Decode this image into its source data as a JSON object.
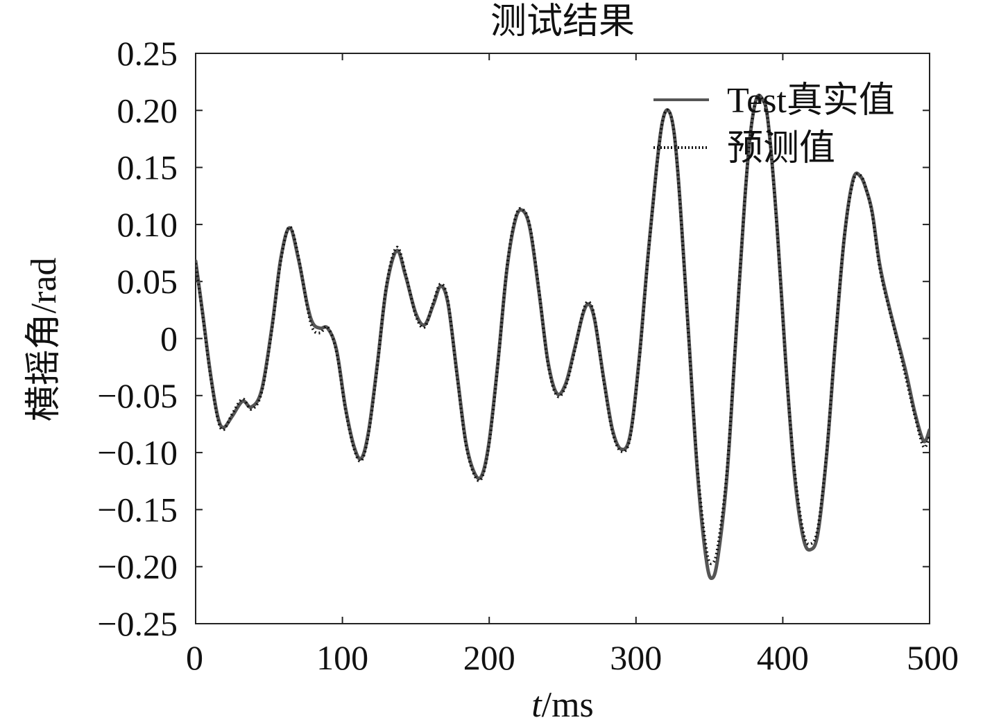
{
  "chart_data": {
    "type": "line",
    "title": "测试结果",
    "xlabel": {
      "italic": "t",
      "rest": "/ms"
    },
    "ylabel": "横摇角/rad",
    "xlim": [
      0,
      500
    ],
    "ylim": [
      -0.25,
      0.25
    ],
    "xticks": [
      0,
      100,
      200,
      300,
      400,
      500
    ],
    "yticks": [
      0.25,
      0.2,
      0.15,
      0.1,
      0.05,
      0,
      -0.05,
      -0.1,
      -0.15,
      -0.2,
      -0.25
    ],
    "ytick_labels": [
      "0.25",
      "0.20",
      "0.15",
      "0.10",
      "0.05",
      "0",
      "−0.05",
      "−0.10",
      "−0.15",
      "−0.20",
      "−0.25"
    ],
    "grid": false,
    "legend_position": "top-right",
    "series": [
      {
        "name": "Test真实值",
        "style": "solid",
        "color": "#555555",
        "x": [
          0,
          5,
          10,
          15,
          19,
          25,
          32,
          38,
          45,
          52,
          58,
          64,
          70,
          76,
          80,
          85,
          90,
          96,
          102,
          108,
          113,
          118,
          124,
          130,
          137,
          143,
          150,
          156,
          162,
          167,
          172,
          178,
          184,
          190,
          195,
          200,
          206,
          212,
          218,
          223,
          228,
          234,
          240,
          246,
          252,
          258,
          264,
          268,
          272,
          278,
          284,
          290,
          296,
          302,
          308,
          314,
          318,
          322,
          326,
          330,
          336,
          342,
          348,
          352,
          356,
          362,
          368,
          374,
          378,
          382,
          386,
          390,
          396,
          402,
          408,
          414,
          419,
          424,
          430,
          436,
          442,
          448,
          453,
          457,
          461,
          466,
          472,
          478,
          484,
          490,
          496,
          500
        ],
        "y": [
          0.068,
          0.02,
          -0.03,
          -0.068,
          -0.078,
          -0.068,
          -0.055,
          -0.06,
          -0.045,
          0.01,
          0.07,
          0.097,
          0.07,
          0.03,
          0.013,
          0.009,
          0.009,
          -0.01,
          -0.06,
          -0.095,
          -0.105,
          -0.08,
          -0.02,
          0.045,
          0.077,
          0.055,
          0.022,
          0.012,
          0.03,
          0.046,
          0.03,
          -0.03,
          -0.09,
          -0.118,
          -0.12,
          -0.09,
          -0.02,
          0.06,
          0.105,
          0.112,
          0.095,
          0.04,
          -0.02,
          -0.048,
          -0.04,
          -0.01,
          0.022,
          0.03,
          0.015,
          -0.035,
          -0.08,
          -0.097,
          -0.085,
          -0.02,
          0.07,
          0.15,
          0.19,
          0.2,
          0.18,
          0.12,
          0.0,
          -0.12,
          -0.195,
          -0.21,
          -0.19,
          -0.12,
          0.0,
          0.12,
          0.18,
          0.21,
          0.21,
          0.19,
          0.1,
          -0.02,
          -0.12,
          -0.175,
          -0.185,
          -0.17,
          -0.1,
          0.0,
          0.09,
          0.14,
          0.142,
          0.13,
          0.11,
          0.065,
          0.03,
          0.0,
          -0.03,
          -0.065,
          -0.09,
          -0.08
        ]
      },
      {
        "name": "预测值",
        "style": "dotted",
        "color": "#111111",
        "x": [
          0,
          5,
          10,
          15,
          19,
          25,
          32,
          38,
          45,
          52,
          58,
          64,
          70,
          76,
          80,
          85,
          90,
          96,
          102,
          108,
          113,
          118,
          124,
          130,
          137,
          143,
          150,
          156,
          162,
          167,
          172,
          178,
          184,
          190,
          195,
          200,
          206,
          212,
          218,
          223,
          228,
          234,
          240,
          246,
          252,
          258,
          264,
          268,
          272,
          278,
          284,
          290,
          296,
          302,
          308,
          314,
          318,
          322,
          326,
          330,
          336,
          342,
          348,
          352,
          356,
          362,
          368,
          374,
          378,
          382,
          386,
          390,
          396,
          402,
          408,
          414,
          419,
          424,
          430,
          436,
          442,
          448,
          453,
          457,
          461,
          466,
          472,
          478,
          484,
          490,
          496,
          500
        ],
        "y": [
          0.066,
          0.018,
          -0.032,
          -0.07,
          -0.08,
          -0.066,
          -0.053,
          -0.062,
          -0.047,
          0.008,
          0.068,
          0.098,
          0.072,
          0.028,
          0.008,
          0.005,
          0.01,
          -0.012,
          -0.062,
          -0.097,
          -0.107,
          -0.082,
          -0.022,
          0.047,
          0.08,
          0.057,
          0.02,
          0.01,
          0.032,
          0.048,
          0.032,
          -0.032,
          -0.092,
          -0.12,
          -0.122,
          -0.092,
          -0.022,
          0.062,
          0.107,
          0.113,
          0.097,
          0.042,
          -0.022,
          -0.05,
          -0.042,
          -0.012,
          0.024,
          0.032,
          0.017,
          -0.037,
          -0.082,
          -0.099,
          -0.087,
          -0.022,
          0.068,
          0.148,
          0.19,
          0.2,
          0.18,
          0.118,
          -0.002,
          -0.115,
          -0.185,
          -0.197,
          -0.18,
          -0.115,
          0.002,
          0.12,
          0.18,
          0.21,
          0.21,
          0.19,
          0.098,
          -0.022,
          -0.115,
          -0.17,
          -0.18,
          -0.165,
          -0.098,
          0.002,
          0.09,
          0.138,
          0.143,
          0.13,
          0.108,
          0.062,
          0.028,
          -0.002,
          -0.035,
          -0.068,
          -0.095,
          -0.085
        ]
      }
    ]
  }
}
